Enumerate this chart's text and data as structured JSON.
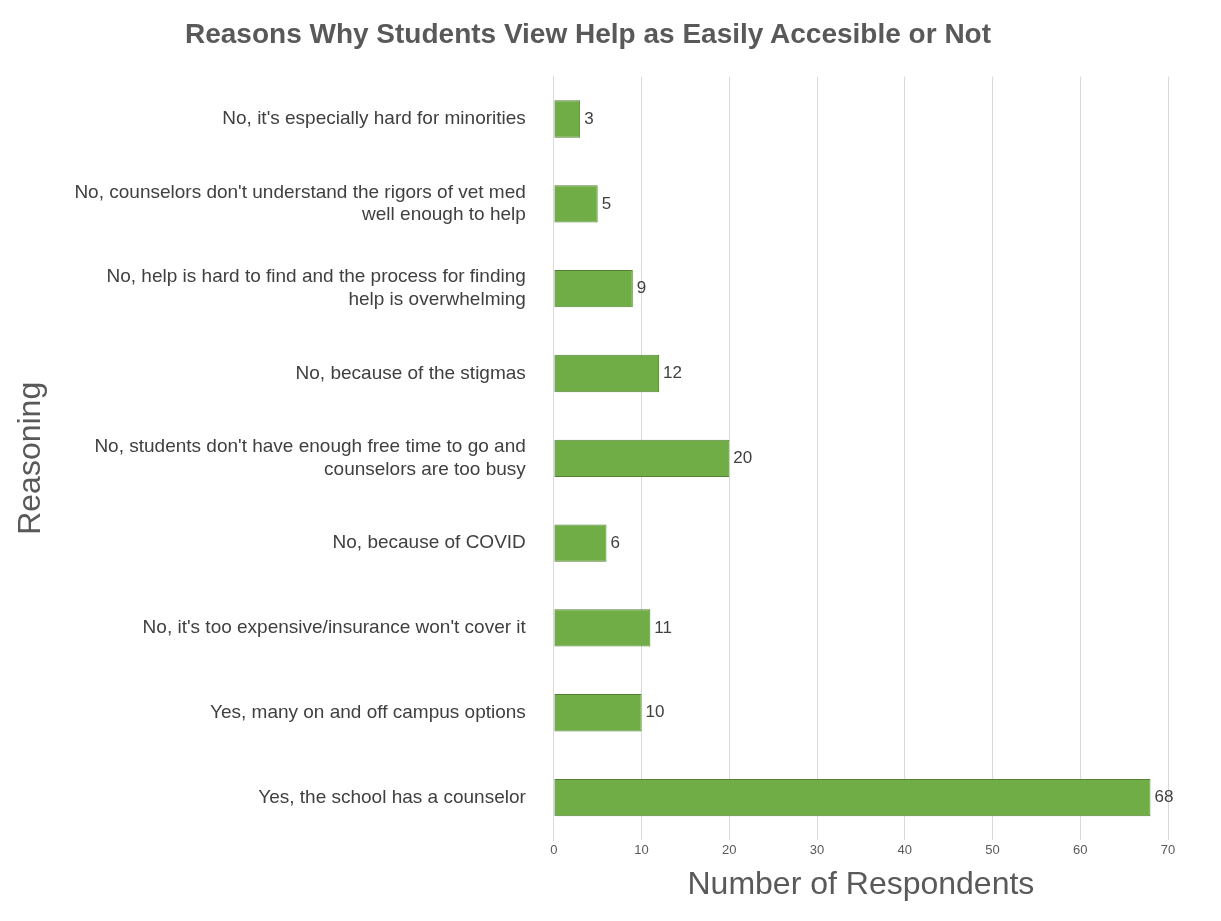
{
  "chart_data": {
    "type": "bar",
    "orientation": "horizontal",
    "title": "Reasons Why Students View Help as Easily Accesible or Not",
    "xlabel": "Number of Respondents",
    "ylabel": "Reasoning",
    "categories": [
      "No, it's especially hard for minorities",
      "No, counselors don't understand the rigors of vet med well enough to help",
      "No, help is hard to find and the process for finding help is overwhelming",
      "No, because of the stigmas",
      "No, students don't have enough free time to go and counselors are too busy",
      "No, because of COVID",
      "No, it's too expensive/insurance won't cover it",
      "Yes, many on and off campus options",
      "Yes, the school has a counselor"
    ],
    "values": [
      3,
      5,
      9,
      12,
      20,
      6,
      11,
      10,
      68
    ],
    "color": "#70ad47",
    "xlim": [
      0,
      70
    ],
    "xticks": [
      0,
      10,
      20,
      30,
      40,
      50,
      60,
      70
    ],
    "grid": "x",
    "data_labels": true,
    "legend": false
  }
}
